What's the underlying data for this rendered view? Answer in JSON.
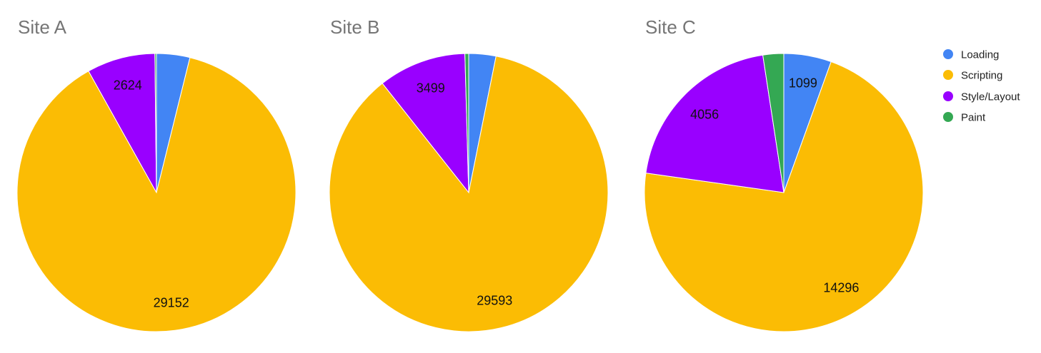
{
  "legend": [
    {
      "label": "Loading",
      "color": "#4285f4"
    },
    {
      "label": "Scripting",
      "color": "#fbbc04"
    },
    {
      "label": "Style/Layout",
      "color": "#9900ff"
    },
    {
      "label": "Paint",
      "color": "#34a853"
    }
  ],
  "chart_data": [
    {
      "type": "pie",
      "title": "Site A",
      "categories": [
        "Loading",
        "Scripting",
        "Style/Layout",
        "Paint"
      ],
      "values": [
        1280,
        29152,
        2624,
        60
      ],
      "value_labels": [
        "",
        "29152",
        "2624",
        ""
      ],
      "legend_position": "right"
    },
    {
      "type": "pie",
      "title": "Site B",
      "categories": [
        "Loading",
        "Scripting",
        "Style/Layout",
        "Paint"
      ],
      "values": [
        1080,
        29593,
        3499,
        150
      ],
      "value_labels": [
        "",
        "29593",
        "3499",
        ""
      ],
      "legend_position": "right"
    },
    {
      "type": "pie",
      "title": "Site C",
      "categories": [
        "Loading",
        "Scripting",
        "Style/Layout",
        "Paint"
      ],
      "values": [
        1099,
        14296,
        4056,
        480
      ],
      "value_labels": [
        "1099",
        "14296",
        "4056",
        ""
      ],
      "legend_position": "right"
    }
  ]
}
